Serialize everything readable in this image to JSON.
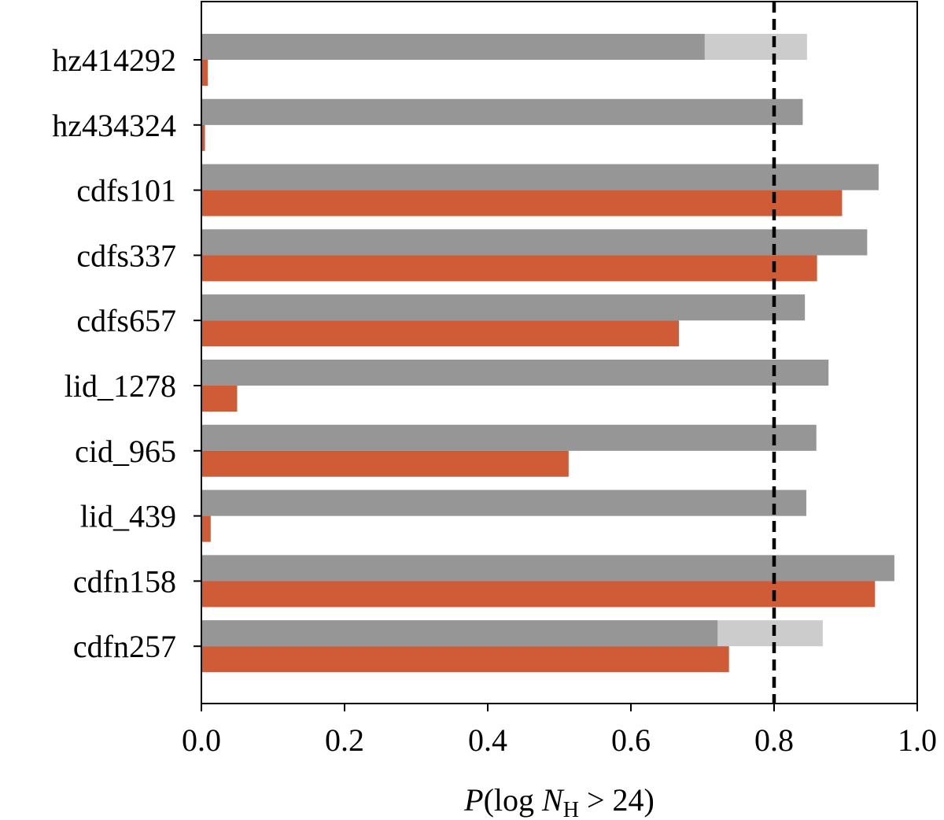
{
  "chart_data": {
    "type": "bar",
    "orientation": "horizontal",
    "categories": [
      "hz414292",
      "hz434324",
      "cdfs101",
      "cdfs337",
      "cdfs657",
      "lid_1278",
      "cid_965",
      "lid_439",
      "cdfn158",
      "cdfn257"
    ],
    "series": [
      {
        "values": [
          0.703,
          0.84,
          0.946,
          0.93,
          0.843,
          0.876,
          0.859,
          0.845,
          0.968,
          0.721
        ]
      },
      {
        "values": [
          0.846,
          0.84,
          0.946,
          0.93,
          0.843,
          0.876,
          0.859,
          0.845,
          0.968,
          0.868
        ]
      },
      {
        "values": [
          0.009,
          0.005,
          0.895,
          0.86,
          0.667,
          0.05,
          0.513,
          0.013,
          0.941,
          0.737
        ]
      }
    ],
    "colors": {
      "gray": "#969696",
      "light_gray": "#cccccc",
      "orange": "#cf5b37",
      "threshold_line": "#000000"
    },
    "threshold": 0.8,
    "xlim": [
      0.0,
      1.0
    ],
    "xticks": [
      "0.0",
      "0.2",
      "0.4",
      "0.6",
      "0.8",
      "1.0"
    ],
    "xlabel": {
      "prefix": "P",
      "open": "(log ",
      "var": "N",
      "sub": "H",
      "rest": " > 24)"
    },
    "grid": false,
    "legend": "none"
  }
}
